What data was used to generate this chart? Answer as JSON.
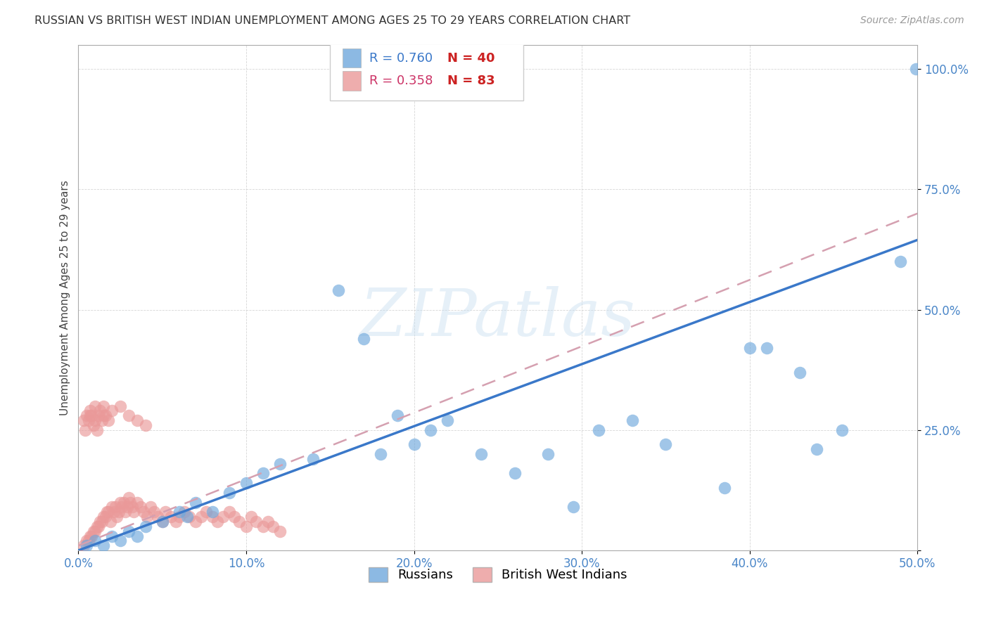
{
  "title": "RUSSIAN VS BRITISH WEST INDIAN UNEMPLOYMENT AMONG AGES 25 TO 29 YEARS CORRELATION CHART",
  "source": "Source: ZipAtlas.com",
  "ylabel": "Unemployment Among Ages 25 to 29 years",
  "xlim": [
    0.0,
    0.5
  ],
  "ylim": [
    0.0,
    1.05
  ],
  "xticks": [
    0.0,
    0.1,
    0.2,
    0.3,
    0.4,
    0.5
  ],
  "yticks": [
    0.0,
    0.25,
    0.5,
    0.75,
    1.0
  ],
  "xticklabels": [
    "0.0%",
    "10.0%",
    "20.0%",
    "30.0%",
    "40.0%",
    "50.0%"
  ],
  "yticklabels": [
    "",
    "25.0%",
    "50.0%",
    "75.0%",
    "100.0%"
  ],
  "russian_color": "#6fa8dc",
  "bwi_color": "#ea9999",
  "trend_russian_color": "#3a78c9",
  "trend_bwi_color": "#d5a0b0",
  "legend_r_russian": "R = 0.760",
  "legend_n_russian": "N = 40",
  "legend_r_bwi": "R = 0.358",
  "legend_n_bwi": "N = 83",
  "legend_r_russian_color": "#3a78c9",
  "legend_n_russian_color": "#cc3333",
  "legend_r_bwi_color": "#cc3366",
  "legend_n_bwi_color": "#cc3333",
  "russians_label": "Russians",
  "bwi_label": "British West Indians",
  "background_color": "#ffffff",
  "grid_color": "#cccccc",
  "watermark": "ZIPatlas",
  "trend_russian_x0": 0.0,
  "trend_russian_y0": 0.0,
  "trend_russian_x1": 0.5,
  "trend_russian_y1": 0.645,
  "trend_bwi_x0": 0.0,
  "trend_bwi_y0": 0.01,
  "trend_bwi_x1": 0.5,
  "trend_bwi_y1": 0.7,
  "russians_x": [
    0.005,
    0.01,
    0.015,
    0.02,
    0.025,
    0.03,
    0.035,
    0.04,
    0.05,
    0.06,
    0.065,
    0.07,
    0.08,
    0.09,
    0.1,
    0.11,
    0.12,
    0.14,
    0.155,
    0.17,
    0.18,
    0.19,
    0.2,
    0.21,
    0.22,
    0.24,
    0.26,
    0.28,
    0.295,
    0.31,
    0.33,
    0.35,
    0.385,
    0.4,
    0.41,
    0.43,
    0.44,
    0.455,
    0.49,
    0.499
  ],
  "russians_y": [
    0.01,
    0.02,
    0.01,
    0.03,
    0.02,
    0.04,
    0.03,
    0.05,
    0.06,
    0.08,
    0.07,
    0.1,
    0.08,
    0.12,
    0.14,
    0.16,
    0.18,
    0.19,
    0.54,
    0.44,
    0.2,
    0.28,
    0.22,
    0.25,
    0.27,
    0.2,
    0.16,
    0.2,
    0.09,
    0.25,
    0.27,
    0.22,
    0.13,
    0.42,
    0.42,
    0.37,
    0.21,
    0.25,
    0.6,
    1.0
  ],
  "bwi_x": [
    0.003,
    0.005,
    0.006,
    0.007,
    0.008,
    0.009,
    0.01,
    0.011,
    0.012,
    0.013,
    0.014,
    0.015,
    0.016,
    0.017,
    0.018,
    0.019,
    0.02,
    0.021,
    0.022,
    0.023,
    0.024,
    0.025,
    0.026,
    0.027,
    0.028,
    0.029,
    0.03,
    0.031,
    0.032,
    0.033,
    0.035,
    0.037,
    0.039,
    0.041,
    0.043,
    0.045,
    0.047,
    0.05,
    0.052,
    0.055,
    0.058,
    0.06,
    0.063,
    0.066,
    0.07,
    0.073,
    0.076,
    0.08,
    0.083,
    0.086,
    0.09,
    0.093,
    0.096,
    0.1,
    0.103,
    0.106,
    0.11,
    0.113,
    0.116,
    0.12,
    0.003,
    0.004,
    0.005,
    0.006,
    0.007,
    0.008,
    0.009,
    0.01,
    0.011,
    0.012,
    0.013,
    0.014,
    0.015,
    0.016,
    0.018,
    0.02,
    0.025,
    0.03,
    0.035,
    0.04,
    0.007,
    0.01,
    0.015
  ],
  "bwi_y": [
    0.01,
    0.02,
    0.02,
    0.03,
    0.03,
    0.04,
    0.04,
    0.05,
    0.05,
    0.06,
    0.06,
    0.07,
    0.07,
    0.08,
    0.08,
    0.06,
    0.09,
    0.08,
    0.09,
    0.07,
    0.08,
    0.1,
    0.09,
    0.1,
    0.08,
    0.09,
    0.11,
    0.1,
    0.09,
    0.08,
    0.1,
    0.09,
    0.08,
    0.07,
    0.09,
    0.08,
    0.07,
    0.06,
    0.08,
    0.07,
    0.06,
    0.07,
    0.08,
    0.07,
    0.06,
    0.07,
    0.08,
    0.07,
    0.06,
    0.07,
    0.08,
    0.07,
    0.06,
    0.05,
    0.07,
    0.06,
    0.05,
    0.06,
    0.05,
    0.04,
    0.27,
    0.25,
    0.28,
    0.27,
    0.29,
    0.28,
    0.26,
    0.27,
    0.25,
    0.28,
    0.29,
    0.27,
    0.3,
    0.28,
    0.27,
    0.29,
    0.3,
    0.28,
    0.27,
    0.26,
    0.28,
    0.3,
    0.28
  ]
}
